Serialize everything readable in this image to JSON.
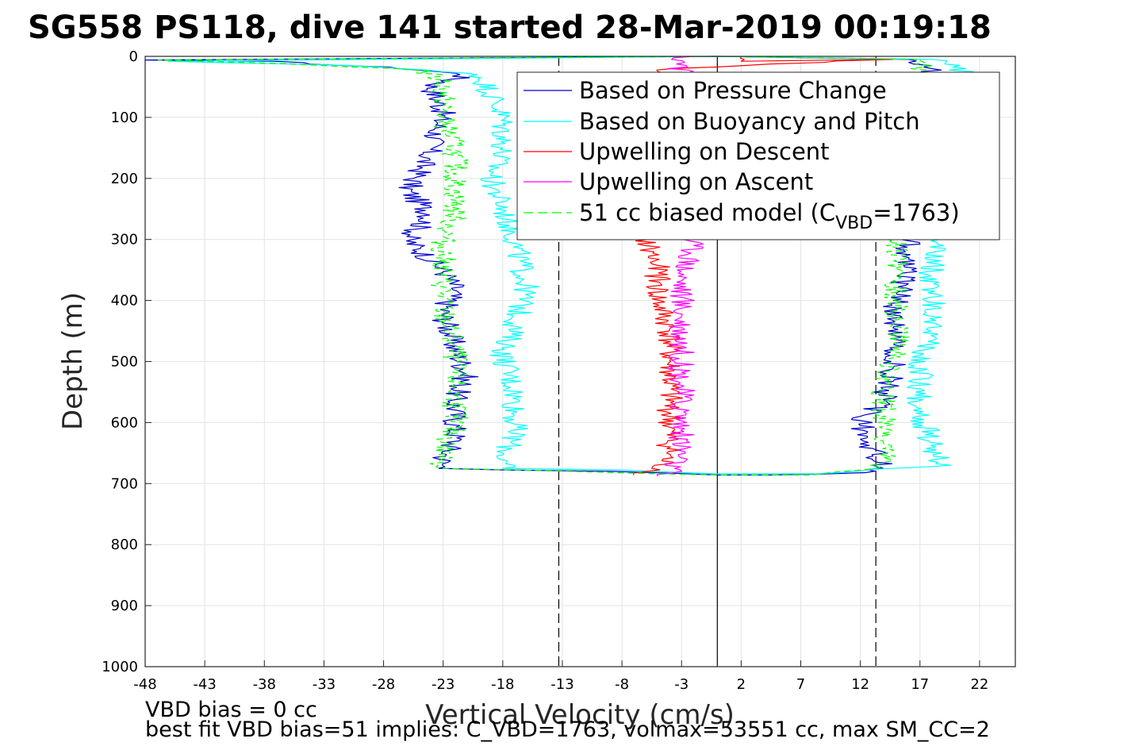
{
  "chart_data": {
    "type": "line",
    "title": "SG558 PS118, dive 141 started 28-Mar-2019 00:19:18",
    "xlabel": "Vertical Velocity (cm/s)",
    "ylabel": "Depth (m)",
    "xlim": [
      -48,
      25
    ],
    "ylim": [
      1000,
      0
    ],
    "y_reversed": true,
    "grid": true,
    "legend_placement": "top-right",
    "xticks": [
      -48,
      -43,
      -38,
      -33,
      -28,
      -23,
      -18,
      -13,
      -8,
      -3,
      2,
      7,
      12,
      17,
      22
    ],
    "yticks": [
      0,
      100,
      200,
      300,
      400,
      500,
      600,
      700,
      800,
      900,
      1000
    ],
    "reference_lines": [
      {
        "x": 0,
        "style": "solid",
        "color": "#000000"
      },
      {
        "x": -13.3,
        "style": "dashed",
        "color": "#000000"
      },
      {
        "x": 13.3,
        "style": "dashed",
        "color": "#000000"
      }
    ],
    "series": [
      {
        "name": "Based on Pressure Change",
        "color": "#0000cc",
        "style": "solid",
        "points": [
          [
            0,
            0
          ],
          [
            -48,
            6
          ],
          [
            -38,
            8
          ],
          [
            -26,
            20
          ],
          [
            -21,
            30
          ],
          [
            -24,
            50
          ],
          [
            -23,
            90
          ],
          [
            -24,
            150
          ],
          [
            -25,
            190
          ],
          [
            -26,
            220
          ],
          [
            -24,
            260
          ],
          [
            -26,
            300
          ],
          [
            -23,
            350
          ],
          [
            -22,
            380
          ],
          [
            -23,
            420
          ],
          [
            -22,
            480
          ],
          [
            -21,
            520
          ],
          [
            -22,
            560
          ],
          [
            -22,
            600
          ],
          [
            -22,
            630
          ],
          [
            -23,
            660
          ],
          [
            -23,
            675
          ],
          [
            -17,
            678
          ],
          [
            -8,
            680
          ],
          [
            -3,
            683
          ],
          [
            0,
            686
          ],
          [
            5,
            686
          ],
          [
            12,
            682
          ],
          [
            14,
            670
          ],
          [
            13,
            640
          ],
          [
            12,
            600
          ],
          [
            14,
            560
          ],
          [
            15,
            500
          ],
          [
            15,
            450
          ],
          [
            15,
            400
          ],
          [
            16,
            350
          ],
          [
            16,
            310
          ],
          [
            16,
            250
          ],
          [
            16,
            100
          ],
          [
            18,
            30
          ],
          [
            18,
            15
          ],
          [
            16,
            5
          ],
          [
            0,
            0
          ]
        ]
      },
      {
        "name": "Based on Buoyancy and Pitch",
        "color": "#00ffff",
        "style": "solid",
        "points": [
          [
            0,
            0
          ],
          [
            -47,
            8
          ],
          [
            -30,
            15
          ],
          [
            -20,
            30
          ],
          [
            -19,
            60
          ],
          [
            -18,
            100
          ],
          [
            -18,
            150
          ],
          [
            -19,
            200
          ],
          [
            -18,
            250
          ],
          [
            -17,
            300
          ],
          [
            -16,
            380
          ],
          [
            -17,
            440
          ],
          [
            -18,
            490
          ],
          [
            -17,
            550
          ],
          [
            -17,
            620
          ],
          [
            -18,
            660
          ],
          [
            -18,
            675
          ],
          [
            -8,
            678
          ],
          [
            0,
            684
          ],
          [
            8,
            684
          ],
          [
            16,
            674
          ],
          [
            19,
            670
          ],
          [
            18,
            640
          ],
          [
            17,
            580
          ],
          [
            17,
            500
          ],
          [
            18,
            450
          ],
          [
            18,
            400
          ],
          [
            18,
            340
          ],
          [
            19,
            280
          ],
          [
            20,
            150
          ],
          [
            21,
            40
          ],
          [
            20,
            15
          ],
          [
            18,
            5
          ],
          [
            0,
            0
          ]
        ]
      },
      {
        "name": "Upwelling on Descent",
        "color": "#ff0000",
        "style": "solid",
        "points": [
          [
            1,
            0
          ],
          [
            2,
            8
          ],
          [
            14,
            5
          ],
          [
            -4,
            20
          ],
          [
            -4,
            60
          ],
          [
            -5,
            100
          ],
          [
            -5,
            150
          ],
          [
            -5,
            200
          ],
          [
            -6,
            250
          ],
          [
            -6,
            300
          ],
          [
            -5,
            350
          ],
          [
            -5,
            400
          ],
          [
            -4,
            450
          ],
          [
            -4,
            500
          ],
          [
            -4,
            550
          ],
          [
            -4,
            600
          ],
          [
            -4,
            650
          ],
          [
            -5,
            680
          ],
          [
            -7,
            686
          ]
        ]
      },
      {
        "name": "Upwelling on Ascent",
        "color": "#ff00ff",
        "style": "solid",
        "points": [
          [
            -3,
            0
          ],
          [
            -3,
            5
          ],
          [
            -3,
            20
          ],
          [
            -3,
            100
          ],
          [
            -3,
            200
          ],
          [
            -3,
            250
          ],
          [
            -2,
            320
          ],
          [
            -3,
            360
          ],
          [
            -3,
            400
          ],
          [
            -3,
            450
          ],
          [
            -3,
            500
          ],
          [
            -3,
            550
          ],
          [
            -3,
            600
          ],
          [
            -3,
            650
          ],
          [
            -4,
            680
          ],
          [
            -5,
            688
          ]
        ]
      },
      {
        "name": "51 cc biased model (C_VBD=1763)",
        "legend_text": "51 cc biased model (C",
        "legend_subscript": "VBD",
        "legend_suffix": "=1763)",
        "color": "#00ff00",
        "style": "dashed",
        "points": [
          [
            0,
            0
          ],
          [
            -48,
            6
          ],
          [
            -36,
            12
          ],
          [
            -25,
            22
          ],
          [
            -23,
            40
          ],
          [
            -23,
            100
          ],
          [
            -22,
            150
          ],
          [
            -22,
            200
          ],
          [
            -22,
            260
          ],
          [
            -23,
            300
          ],
          [
            -23,
            360
          ],
          [
            -23,
            420
          ],
          [
            -22,
            480
          ],
          [
            -22,
            540
          ],
          [
            -22,
            600
          ],
          [
            -23,
            650
          ],
          [
            -23,
            675
          ],
          [
            -12,
            680
          ],
          [
            0,
            686
          ],
          [
            8,
            686
          ],
          [
            13,
            675
          ],
          [
            14,
            660
          ],
          [
            14,
            600
          ],
          [
            14,
            540
          ],
          [
            15,
            480
          ],
          [
            15,
            420
          ],
          [
            15,
            360
          ],
          [
            15,
            300
          ],
          [
            16,
            200
          ],
          [
            16,
            100
          ],
          [
            17,
            20
          ],
          [
            17,
            5
          ],
          [
            0,
            0
          ]
        ]
      }
    ]
  },
  "notes": {
    "line1": "VBD bias = 0 cc",
    "line2": "best fit VBD bias=51 implies: C_VBD=1763, volmax=53551 cc, max SM_CC=2"
  }
}
